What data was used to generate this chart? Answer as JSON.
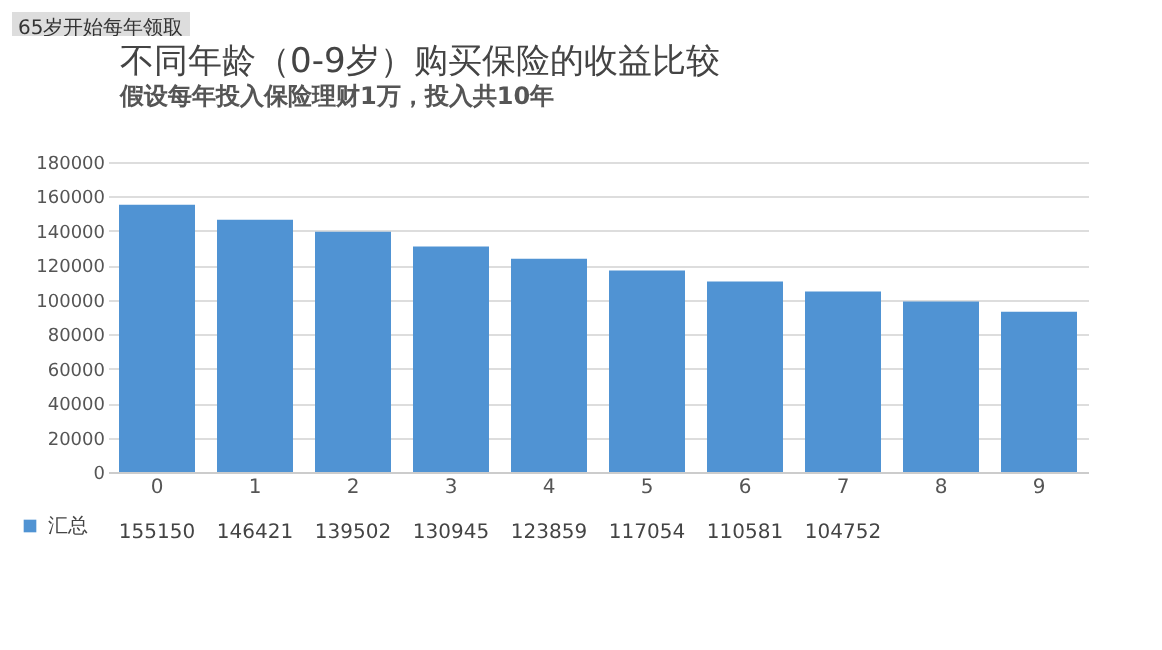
{
  "chart_data": {
    "type": "bar",
    "title": "不同年龄（0-9岁）购买保险的收益比较",
    "subtitle": "假设每年投入保险理财1万，投入共10年",
    "annotations": [
      "65岁开始每年领取"
    ],
    "categories": [
      "0",
      "1",
      "2",
      "3",
      "4",
      "5",
      "6",
      "7",
      "8",
      "9"
    ],
    "series": [
      {
        "name": "汇总",
        "color": "#5093d3",
        "values": [
          155150,
          146421,
          139502,
          130945,
          123859,
          117054,
          110581,
          104752,
          99000,
          93000
        ],
        "value_labels": [
          "155150",
          "146421",
          "139502",
          "130945",
          "123859",
          "117054",
          "110581",
          "104752",
          null,
          null
        ]
      }
    ],
    "ylim": [
      0,
      180000
    ],
    "yticks": [
      0,
      20000,
      40000,
      60000,
      80000,
      100000,
      120000,
      140000,
      160000,
      180000
    ],
    "grid": "y",
    "legend": "bottom left"
  }
}
